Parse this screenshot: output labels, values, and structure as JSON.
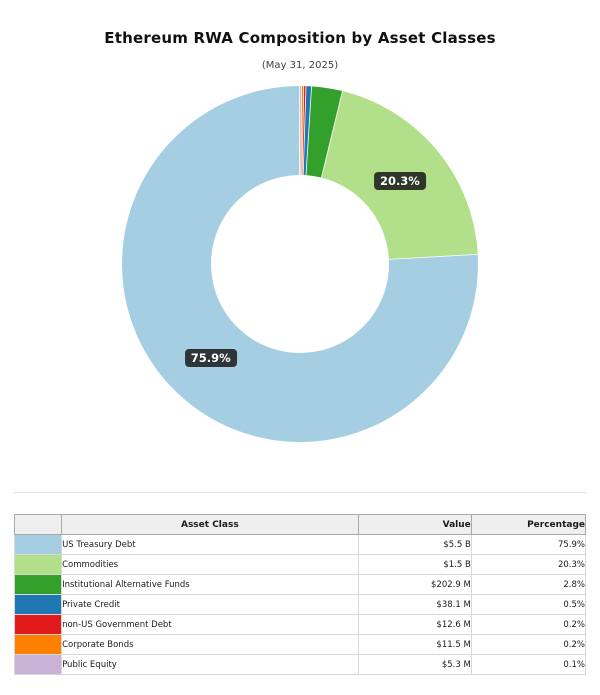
{
  "header": {
    "title": "Ethereum RWA Composition by Asset Classes",
    "subtitle": "(May 31, 2025)"
  },
  "chart_data": {
    "type": "pie",
    "donut": true,
    "title": "Ethereum RWA Composition by Asset Classes",
    "subtitle": "(May 31, 2025)",
    "start_angle": 90,
    "direction": "counterclockwise",
    "slices": [
      {
        "label": "US Treasury Debt",
        "value": "$5.5 B",
        "pct": 75.9,
        "color": "#a6cee3",
        "pct_label": "75.9%"
      },
      {
        "label": "Commodities",
        "value": "$1.5 B",
        "pct": 20.3,
        "color": "#b2df8a",
        "pct_label": "20.3%"
      },
      {
        "label": "Institutional Alternative Funds",
        "value": "$202.9 M",
        "pct": 2.8,
        "color": "#33a02c"
      },
      {
        "label": "Private Credit",
        "value": "$38.1 M",
        "pct": 0.5,
        "color": "#1f78b4"
      },
      {
        "label": "non-US Government Debt",
        "value": "$12.6 M",
        "pct": 0.2,
        "color": "#e31a1c"
      },
      {
        "label": "Corporate Bonds",
        "value": "$11.5 M",
        "pct": 0.2,
        "color": "#ff7f00"
      },
      {
        "label": "Public Equity",
        "value": "$5.3 M",
        "pct": 0.1,
        "color": "#cab2d6"
      }
    ]
  },
  "table": {
    "columns": [
      "",
      "Asset Class",
      "Value",
      "Percentage"
    ],
    "rows": [
      {
        "color": "#a6cee3",
        "asset_class": "US Treasury Debt",
        "value": "$5.5 B",
        "percentage": "75.9%"
      },
      {
        "color": "#b2df8a",
        "asset_class": "Commodities",
        "value": "$1.5 B",
        "percentage": "20.3%"
      },
      {
        "color": "#33a02c",
        "asset_class": "Institutional Alternative Funds",
        "value": "$202.9 M",
        "percentage": "2.8%"
      },
      {
        "color": "#1f78b4",
        "asset_class": "Private Credit",
        "value": "$38.1 M",
        "percentage": "0.5%"
      },
      {
        "color": "#e31a1c",
        "asset_class": "non-US Government Debt",
        "value": "$12.6 M",
        "percentage": "0.2%"
      },
      {
        "color": "#ff7f00",
        "asset_class": "Corporate Bonds",
        "value": "$11.5 M",
        "percentage": "0.2%"
      },
      {
        "color": "#cab2d6",
        "asset_class": "Public Equity",
        "value": "$5.3 M",
        "percentage": "0.1%"
      }
    ]
  }
}
